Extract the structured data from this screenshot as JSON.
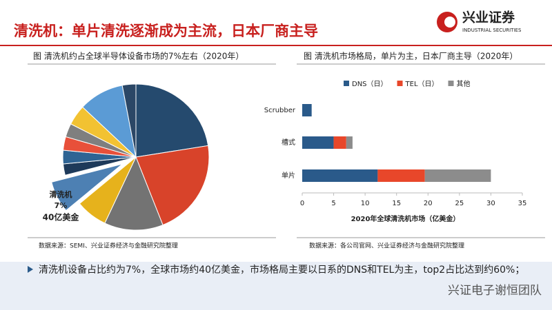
{
  "header": {
    "title": "清洗机：单片清洗逐渐成为主流，日本厂商主导",
    "logo": "兴业证券",
    "logo_en": "INDUSTRIAL SECURITIES"
  },
  "chart_data": [
    {
      "type": "pie",
      "title": "图  清洗机约占全球半导体设备市场的7%左右（2020年）",
      "categories": [
        null,
        null,
        null,
        null,
        "清洗机",
        null,
        null,
        null,
        null,
        null,
        null,
        null
      ],
      "values": [
        22.5,
        21.5,
        13,
        7,
        7,
        2.5,
        3,
        3,
        3,
        4.5,
        10,
        3
      ],
      "value_labels": [
        null,
        null,
        null,
        null,
        "7%",
        null,
        null,
        null,
        null,
        null,
        null,
        null
      ],
      "colors": [
        "#254a6e",
        "#d8432a",
        "#737373",
        "#e6b21c",
        "#4d80b3",
        "#1e3a5a",
        "#2f6494",
        "#e8503a",
        "#7f7f7f",
        "#f2c232",
        "#5b9bd5",
        "#2b4766"
      ],
      "explode": 4,
      "annotation": "40亿美金",
      "source": "数据来源：SEMI、兴业证券经济与金融研究院整理"
    },
    {
      "type": "stacked-bar-horizontal",
      "title": "图  清洗机市场格局，单片为主，日本厂商主导（2020年）",
      "categories": [
        "Scrubber",
        "槽式",
        "单片"
      ],
      "series": [
        {
          "name": "DNS（日）",
          "color": "#2a5a8a",
          "values": [
            1.5,
            5,
            12
          ]
        },
        {
          "name": "TEL（日）",
          "color": "#e8472a",
          "values": [
            0,
            2,
            7.5
          ]
        },
        {
          "name": "其他",
          "color": "#8c8c8c",
          "values": [
            0,
            1,
            10.5
          ]
        }
      ],
      "xlim": [
        0,
        35
      ],
      "xticks": [
        0,
        5,
        10,
        15,
        20,
        25,
        30,
        35
      ],
      "xlabel": "2020年全球清洗机市场（亿美金）",
      "legend": "top",
      "source": "数据来源：各公司官网、兴业证券经济与金融研究院整理"
    }
  ],
  "bullet": "清洗机设备占比约为7%，全球市场约40亿美金，市场格局主要以日系的DNS和TEL为主，top2占比达到约60%；",
  "watermark": "兴证电子谢恒团队"
}
